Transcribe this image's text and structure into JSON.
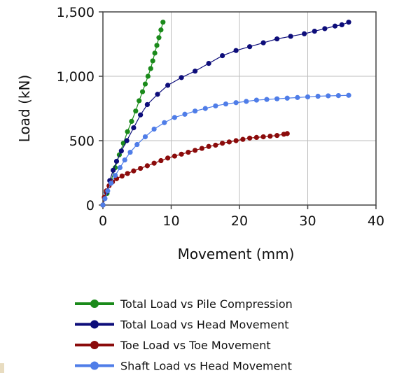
{
  "chart_data": {
    "type": "scatter",
    "title": "",
    "xlabel": "Movement (mm)",
    "ylabel": "Load (kN)",
    "xlim": [
      0,
      40
    ],
    "ylim": [
      0,
      1500
    ],
    "x_ticks": [
      "0",
      "10",
      "20",
      "30",
      "40"
    ],
    "y_ticks": [
      "0",
      "500",
      "1,000",
      "1,500"
    ],
    "grid": true,
    "legend_position": "bottom",
    "series": [
      {
        "name": "Total Load vs Pile Compression",
        "color": "#1a8a1a",
        "x": [
          0,
          0.6,
          1.2,
          1.8,
          2.4,
          3.0,
          3.6,
          4.2,
          4.8,
          5.3,
          5.8,
          6.2,
          6.6,
          7.0,
          7.3,
          7.6,
          7.9,
          8.2,
          8.5,
          8.8
        ],
        "y": [
          0,
          90,
          190,
          290,
          390,
          480,
          570,
          650,
          730,
          810,
          880,
          940,
          1000,
          1060,
          1120,
          1180,
          1240,
          1300,
          1360,
          1420
        ]
      },
      {
        "name": "Total Load vs Head Movement",
        "color": "#0d0d7a",
        "x": [
          0,
          0.5,
          1.0,
          1.5,
          2.0,
          2.7,
          3.5,
          4.5,
          5.5,
          6.5,
          8.0,
          9.5,
          11.5,
          13.5,
          15.5,
          17.5,
          19.5,
          21.5,
          23.5,
          25.5,
          27.5,
          29.5,
          31.0,
          32.5,
          34.0,
          35.0,
          36.0
        ],
        "y": [
          0,
          100,
          190,
          270,
          340,
          420,
          500,
          600,
          700,
          780,
          860,
          930,
          990,
          1040,
          1100,
          1160,
          1200,
          1230,
          1260,
          1290,
          1310,
          1330,
          1350,
          1370,
          1390,
          1400,
          1420
        ]
      },
      {
        "name": "Toe Load vs Toe Movement",
        "color": "#8b0b0b",
        "x": [
          0,
          0.2,
          0.5,
          0.9,
          1.4,
          2.0,
          2.8,
          3.6,
          4.5,
          5.5,
          6.5,
          7.5,
          8.5,
          9.5,
          10.5,
          11.5,
          12.5,
          13.5,
          14.5,
          15.5,
          16.5,
          17.5,
          18.5,
          19.5,
          20.5,
          21.5,
          22.5,
          23.5,
          24.5,
          25.5,
          26.5,
          27.0
        ],
        "y": [
          0,
          60,
          110,
          150,
          180,
          205,
          225,
          245,
          265,
          285,
          305,
          325,
          345,
          365,
          380,
          395,
          410,
          425,
          440,
          455,
          465,
          480,
          490,
          500,
          510,
          520,
          525,
          530,
          535,
          540,
          550,
          555
        ]
      },
      {
        "name": "Shaft Load vs Head Movement",
        "color": "#4f7de8",
        "x": [
          0,
          0.3,
          0.7,
          1.2,
          1.8,
          2.5,
          3.2,
          4.0,
          5.0,
          6.2,
          7.5,
          9.0,
          10.5,
          12.0,
          13.5,
          15.0,
          16.5,
          18.0,
          19.5,
          21.0,
          22.5,
          24.0,
          25.5,
          27.0,
          28.5,
          30.0,
          31.5,
          33.0,
          34.5,
          36.0
        ],
        "y": [
          0,
          50,
          110,
          170,
          230,
          290,
          350,
          410,
          470,
          530,
          590,
          640,
          680,
          705,
          730,
          750,
          770,
          785,
          795,
          805,
          815,
          820,
          825,
          830,
          835,
          840,
          845,
          848,
          850,
          852
        ]
      }
    ]
  }
}
